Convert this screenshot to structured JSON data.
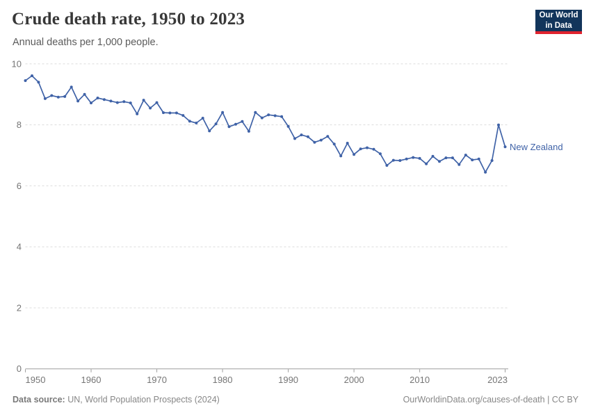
{
  "header": {
    "title": "Crude death rate, 1950 to 2023",
    "subtitle": "Annual deaths per 1,000 people.",
    "logo": {
      "line1": "Our World",
      "line2": "in Data",
      "bg_color": "#12355B",
      "accent_color": "#E0232E"
    }
  },
  "chart_data": {
    "type": "line",
    "title": "Crude death rate, 1950 to 2023",
    "ylabel": "Annual deaths per 1,000 people",
    "xlabel": "",
    "grid": "horizontal-dashed",
    "legend_position": "right-of-line",
    "ylim": [
      0,
      10
    ],
    "yticks": [
      0,
      2,
      4,
      6,
      8,
      10
    ],
    "xticks": [
      1950,
      1960,
      1970,
      1980,
      1990,
      2000,
      2010,
      2023
    ],
    "xlim": [
      1950,
      2023
    ],
    "line_color": "#3F62A7",
    "marker": "circle",
    "series": [
      {
        "name": "New Zealand",
        "x": [
          1950,
          1951,
          1952,
          1953,
          1954,
          1955,
          1956,
          1957,
          1958,
          1959,
          1960,
          1961,
          1962,
          1963,
          1964,
          1965,
          1966,
          1967,
          1968,
          1969,
          1970,
          1971,
          1972,
          1973,
          1974,
          1975,
          1976,
          1977,
          1978,
          1979,
          1980,
          1981,
          1982,
          1983,
          1984,
          1985,
          1986,
          1987,
          1988,
          1989,
          1990,
          1991,
          1992,
          1993,
          1994,
          1995,
          1996,
          1997,
          1998,
          1999,
          2000,
          2001,
          2002,
          2003,
          2004,
          2005,
          2006,
          2007,
          2008,
          2009,
          2010,
          2011,
          2012,
          2013,
          2014,
          2015,
          2016,
          2017,
          2018,
          2019,
          2020,
          2021,
          2022,
          2023
        ],
        "values": [
          9.45,
          9.61,
          9.4,
          8.86,
          8.96,
          8.91,
          8.93,
          9.24,
          8.78,
          9.0,
          8.72,
          8.88,
          8.83,
          8.78,
          8.73,
          8.76,
          8.72,
          8.36,
          8.81,
          8.55,
          8.73,
          8.4,
          8.39,
          8.39,
          8.31,
          8.12,
          8.06,
          8.22,
          7.8,
          8.03,
          8.41,
          7.94,
          8.02,
          8.11,
          7.79,
          8.41,
          8.23,
          8.33,
          8.3,
          8.27,
          7.95,
          7.55,
          7.67,
          7.61,
          7.43,
          7.5,
          7.62,
          7.37,
          6.98,
          7.4,
          7.03,
          7.21,
          7.25,
          7.2,
          7.05,
          6.67,
          6.84,
          6.83,
          6.88,
          6.93,
          6.9,
          6.72,
          6.97,
          6.8,
          6.92,
          6.92,
          6.7,
          7.01,
          6.85,
          6.88,
          6.45,
          6.83,
          8.0,
          7.28
        ]
      }
    ]
  },
  "annotations": {
    "entity_label": "New Zealand"
  },
  "footer": {
    "source_prefix": "Data source:",
    "source_text": " UN, World Population Prospects (2024)",
    "credit": "OurWorldinData.org/causes-of-death | CC BY"
  },
  "colors": {
    "line": "#3F62A7",
    "gridline": "#dcdcdc",
    "axis": "#9e9e9e",
    "tick_label": "#757575",
    "title": "#383838",
    "subtitle": "#5b5b5b",
    "footer": "#878787"
  }
}
